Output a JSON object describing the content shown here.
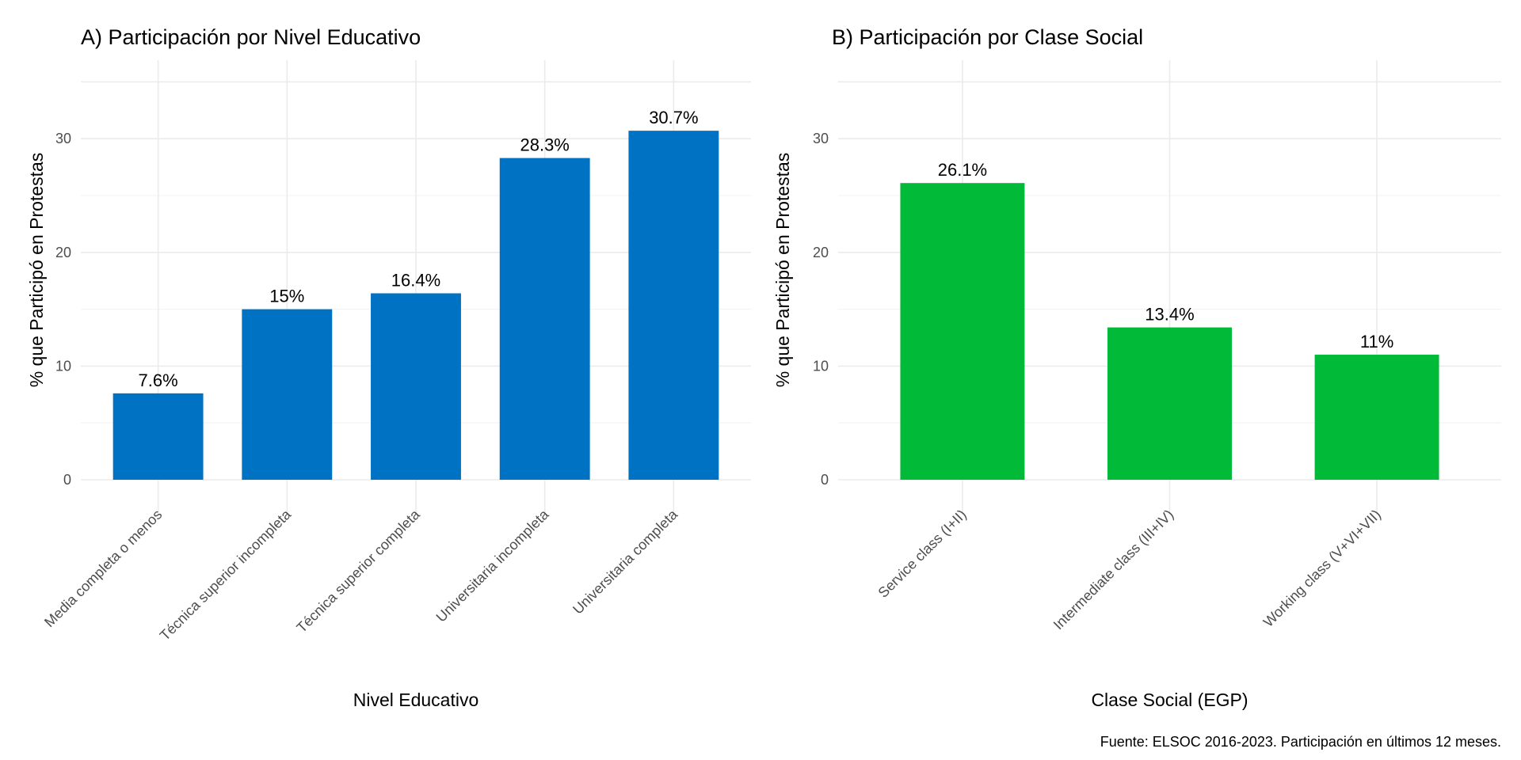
{
  "chart_data": [
    {
      "type": "bar",
      "title": "A) Participación por Nivel Educativo",
      "xlabel": "Nivel Educativo",
      "ylabel": "% que Participó en Protestas",
      "categories": [
        "Media completa o menos",
        "Técnica superior incompleta",
        "Técnica superior completa",
        "Universitaria incompleta",
        "Universitaria completa"
      ],
      "values": [
        7.6,
        15,
        16.4,
        28.3,
        30.7
      ],
      "labels": [
        "7.6%",
        "15%",
        "16.4%",
        "28.3%",
        "30.7%"
      ],
      "yticks": [
        0,
        10,
        20,
        30
      ],
      "ylim": [
        0,
        36.9
      ],
      "color": "#0072C4",
      "grid": true
    },
    {
      "type": "bar",
      "title": "B) Participación por Clase Social",
      "xlabel": "Clase Social (EGP)",
      "ylabel": "% que Participó en Protestas",
      "categories": [
        "Service class (I+II)",
        "Intermediate class (III+IV)",
        "Working class (V+VI+VII)"
      ],
      "values": [
        26.1,
        13.4,
        11
      ],
      "labels": [
        "26.1%",
        "13.4%",
        "11%"
      ],
      "yticks": [
        0,
        10,
        20,
        30
      ],
      "ylim": [
        0,
        36.9
      ],
      "color": "#00BA38",
      "grid": true
    }
  ],
  "caption": "Fuente: ELSOC 2016-2023. Participación en últimos 12 meses."
}
